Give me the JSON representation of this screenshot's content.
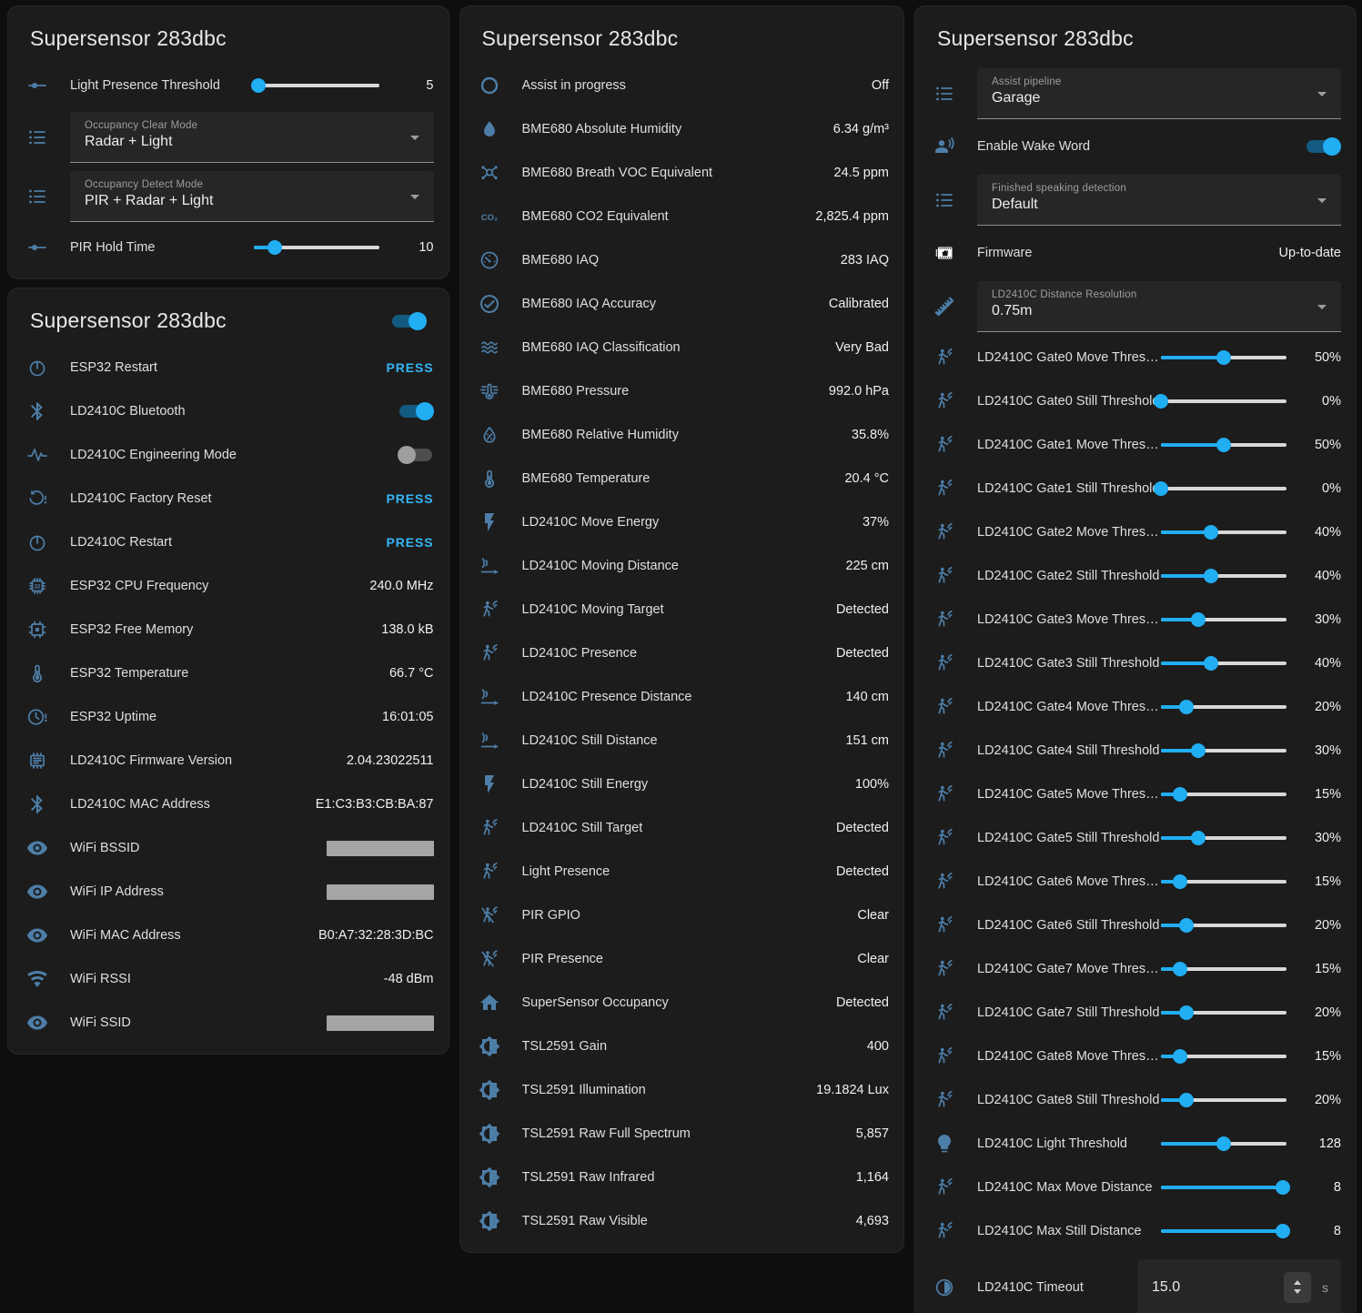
{
  "colors": {
    "accent_blue": "#21aef3",
    "icon_blue": "#4d7ea8",
    "toggle_track_on": "#135a80",
    "toggle_off_knob": "#9e9e9e",
    "press_blue": "#35b5f6",
    "card_bg": "#1c1c1c",
    "page_bg": "#0e0e0e",
    "redacted_bar": "#a5a5a5"
  },
  "cards": {
    "controls": {
      "title": "Supersensor 283dbc",
      "rows": [
        {
          "type": "slider",
          "icon": "slider-icon",
          "label": "Light Presence Threshold",
          "value": "5",
          "percent": 4
        },
        {
          "type": "select",
          "icon": "list-icon",
          "label": "Occupancy Clear Mode",
          "value": "Radar + Light"
        },
        {
          "type": "select",
          "icon": "list-icon",
          "label": "Occupancy Detect Mode",
          "value": "PIR + Radar + Light"
        },
        {
          "type": "slider",
          "icon": "slider-icon",
          "label": "PIR Hold Time",
          "value": "10",
          "percent": 17
        }
      ]
    },
    "diagnostics": {
      "title": "Supersensor 283dbc",
      "header_toggle_on": true,
      "rows": [
        {
          "type": "press",
          "icon": "power-icon",
          "label": "ESP32 Restart",
          "action": "PRESS"
        },
        {
          "type": "toggle",
          "icon": "bluetooth-icon",
          "label": "LD2410C Bluetooth",
          "on": true
        },
        {
          "type": "toggle",
          "icon": "pulse-icon",
          "label": "LD2410C Engineering Mode",
          "on": false
        },
        {
          "type": "press",
          "icon": "restart-alert-icon",
          "label": "LD2410C Factory Reset",
          "action": "PRESS"
        },
        {
          "type": "press",
          "icon": "power-icon",
          "label": "LD2410C Restart",
          "action": "PRESS"
        },
        {
          "type": "text",
          "icon": "cpu-chip-icon",
          "label": "ESP32 CPU Frequency",
          "value": "240.0 MHz"
        },
        {
          "type": "text",
          "icon": "memory-icon",
          "label": "ESP32 Free Memory",
          "value": "138.0 kB"
        },
        {
          "type": "text",
          "icon": "thermometer-icon",
          "label": "ESP32 Temperature",
          "value": "66.7 °C"
        },
        {
          "type": "text",
          "icon": "clock-alert-icon",
          "label": "ESP32 Uptime",
          "value": "16:01:05"
        },
        {
          "type": "text",
          "icon": "chip-lines-icon",
          "label": "LD2410C Firmware Version",
          "value": "2.04.23022511"
        },
        {
          "type": "text",
          "icon": "bluetooth-icon",
          "label": "LD2410C MAC Address",
          "value": "E1:C3:B3:CB:BA:87"
        },
        {
          "type": "redacted",
          "icon": "eye-icon",
          "label": "WiFi BSSID"
        },
        {
          "type": "redacted",
          "icon": "eye-icon",
          "label": "WiFi IP Address"
        },
        {
          "type": "text",
          "icon": "eye-icon",
          "label": "WiFi MAC Address",
          "value": "B0:A7:32:28:3D:BC"
        },
        {
          "type": "text",
          "icon": "wifi-icon",
          "label": "WiFi RSSI",
          "value": "-48 dBm"
        },
        {
          "type": "redacted",
          "icon": "eye-icon",
          "label": "WiFi SSID"
        }
      ]
    },
    "sensors": {
      "title": "Supersensor 283dbc",
      "rows": [
        {
          "type": "text",
          "icon": "ring-icon",
          "label": "Assist in progress",
          "value": "Off"
        },
        {
          "type": "text",
          "icon": "water-drop-icon",
          "label": "BME680 Absolute Humidity",
          "value": "6.34 g/m³"
        },
        {
          "type": "text",
          "icon": "molecule-icon",
          "label": "BME680 Breath VOC Equivalent",
          "value": "24.5 ppm"
        },
        {
          "type": "text",
          "icon": "co2-icon",
          "label": "BME680 CO2 Equivalent",
          "value": "2,825.4 ppm"
        },
        {
          "type": "text",
          "icon": "gauge-icon",
          "label": "BME680 IAQ",
          "value": "283 IAQ"
        },
        {
          "type": "text",
          "icon": "check-circle-icon",
          "label": "BME680 IAQ Accuracy",
          "value": "Calibrated"
        },
        {
          "type": "text",
          "icon": "air-filter-icon",
          "label": "BME680 IAQ Classification",
          "value": "Very Bad"
        },
        {
          "type": "text",
          "icon": "pressure-icon",
          "label": "BME680 Pressure",
          "value": "992.0 hPa"
        },
        {
          "type": "text",
          "icon": "humidity-icon",
          "label": "BME680 Relative Humidity",
          "value": "35.8%"
        },
        {
          "type": "text",
          "icon": "thermometer-icon",
          "label": "BME680 Temperature",
          "value": "20.4 °C"
        },
        {
          "type": "text",
          "icon": "flash-icon",
          "label": "LD2410C Move Energy",
          "value": "37%"
        },
        {
          "type": "text",
          "icon": "radar-icon",
          "label": "LD2410C Moving Distance",
          "value": "225 cm"
        },
        {
          "type": "text",
          "icon": "motion-icon",
          "label": "LD2410C Moving Target",
          "value": "Detected"
        },
        {
          "type": "text",
          "icon": "motion-icon",
          "label": "LD2410C Presence",
          "value": "Detected"
        },
        {
          "type": "text",
          "icon": "radar-icon",
          "label": "LD2410C Presence Distance",
          "value": "140 cm"
        },
        {
          "type": "text",
          "icon": "radar-icon",
          "label": "LD2410C Still Distance",
          "value": "151 cm"
        },
        {
          "type": "text",
          "icon": "flash-icon",
          "label": "LD2410C Still Energy",
          "value": "100%"
        },
        {
          "type": "text",
          "icon": "motion-icon",
          "label": "LD2410C Still Target",
          "value": "Detected"
        },
        {
          "type": "text",
          "icon": "motion-icon",
          "label": "Light Presence",
          "value": "Detected"
        },
        {
          "type": "text",
          "icon": "motion-off-icon",
          "label": "PIR GPIO",
          "value": "Clear"
        },
        {
          "type": "text",
          "icon": "motion-off-icon",
          "label": "PIR Presence",
          "value": "Clear"
        },
        {
          "type": "text",
          "icon": "home-icon",
          "label": "SuperSensor Occupancy",
          "value": "Detected"
        },
        {
          "type": "text",
          "icon": "brightness-icon",
          "label": "TSL2591 Gain",
          "value": "400"
        },
        {
          "type": "text",
          "icon": "brightness-icon",
          "label": "TSL2591 Illumination",
          "value": "19.1824 Lux"
        },
        {
          "type": "text",
          "icon": "brightness-icon",
          "label": "TSL2591 Raw Full Spectrum",
          "value": "5,857"
        },
        {
          "type": "text",
          "icon": "brightness-icon",
          "label": "TSL2591 Raw Infrared",
          "value": "1,164"
        },
        {
          "type": "text",
          "icon": "brightness-icon",
          "label": "TSL2591 Raw Visible",
          "value": "4,693"
        }
      ]
    },
    "config": {
      "title": "Supersensor 283dbc",
      "rows": [
        {
          "type": "select",
          "icon": "list-icon",
          "label": "Assist pipeline",
          "value": "Garage"
        },
        {
          "type": "toggle",
          "icon": "voice-icon",
          "label": "Enable Wake Word",
          "on": true,
          "tall": true
        },
        {
          "type": "select",
          "icon": "list-icon",
          "label": "Finished speaking detection",
          "value": "Default"
        },
        {
          "type": "text",
          "icon": "firmware-chip-icon",
          "label": "Firmware",
          "value": "Up-to-date",
          "tall": true
        },
        {
          "type": "select",
          "icon": "ruler-icon",
          "label": "LD2410C Distance Resolution",
          "value": "0.75m"
        },
        {
          "type": "slider",
          "icon": "motion-icon",
          "label": "LD2410C Gate0 Move Threshold",
          "value": "50%",
          "percent": 50
        },
        {
          "type": "slider",
          "icon": "motion-icon",
          "label": "LD2410C Gate0 Still Threshold",
          "value": "0%",
          "percent": 0
        },
        {
          "type": "slider",
          "icon": "motion-icon",
          "label": "LD2410C Gate1 Move Threshold",
          "value": "50%",
          "percent": 50
        },
        {
          "type": "slider",
          "icon": "motion-icon",
          "label": "LD2410C Gate1 Still Threshold",
          "value": "0%",
          "percent": 0
        },
        {
          "type": "slider",
          "icon": "motion-icon",
          "label": "LD2410C Gate2 Move Threshold",
          "value": "40%",
          "percent": 40
        },
        {
          "type": "slider",
          "icon": "motion-icon",
          "label": "LD2410C Gate2 Still Threshold",
          "value": "40%",
          "percent": 40
        },
        {
          "type": "slider",
          "icon": "motion-icon",
          "label": "LD2410C Gate3 Move Threshold",
          "value": "30%",
          "percent": 30
        },
        {
          "type": "slider",
          "icon": "motion-icon",
          "label": "LD2410C Gate3 Still Threshold",
          "value": "40%",
          "percent": 40
        },
        {
          "type": "slider",
          "icon": "motion-icon",
          "label": "LD2410C Gate4 Move Threshold",
          "value": "20%",
          "percent": 20
        },
        {
          "type": "slider",
          "icon": "motion-icon",
          "label": "LD2410C Gate4 Still Threshold",
          "value": "30%",
          "percent": 30
        },
        {
          "type": "slider",
          "icon": "motion-icon",
          "label": "LD2410C Gate5 Move Threshold",
          "value": "15%",
          "percent": 15
        },
        {
          "type": "slider",
          "icon": "motion-icon",
          "label": "LD2410C Gate5 Still Threshold",
          "value": "30%",
          "percent": 30
        },
        {
          "type": "slider",
          "icon": "motion-icon",
          "label": "LD2410C Gate6 Move Threshold",
          "value": "15%",
          "percent": 15
        },
        {
          "type": "slider",
          "icon": "motion-icon",
          "label": "LD2410C Gate6 Still Threshold",
          "value": "20%",
          "percent": 20
        },
        {
          "type": "slider",
          "icon": "motion-icon",
          "label": "LD2410C Gate7 Move Threshold",
          "value": "15%",
          "percent": 15
        },
        {
          "type": "slider",
          "icon": "motion-icon",
          "label": "LD2410C Gate7 Still Threshold",
          "value": "20%",
          "percent": 20
        },
        {
          "type": "slider",
          "icon": "motion-icon",
          "label": "LD2410C Gate8 Move Threshold",
          "value": "15%",
          "percent": 15
        },
        {
          "type": "slider",
          "icon": "motion-icon",
          "label": "LD2410C Gate8 Still Threshold",
          "value": "20%",
          "percent": 20
        },
        {
          "type": "slider",
          "icon": "lightbulb-icon",
          "label": "LD2410C Light Threshold",
          "value": "128",
          "percent": 50
        },
        {
          "type": "slider",
          "icon": "motion-icon",
          "label": "LD2410C Max Move Distance",
          "value": "8",
          "percent": 97
        },
        {
          "type": "slider",
          "icon": "motion-icon",
          "label": "LD2410C Max Still Distance",
          "value": "8",
          "percent": 97
        },
        {
          "type": "number",
          "icon": "timeout-icon",
          "label": "LD2410C Timeout",
          "value": "15.0",
          "unit": "s"
        }
      ]
    }
  }
}
